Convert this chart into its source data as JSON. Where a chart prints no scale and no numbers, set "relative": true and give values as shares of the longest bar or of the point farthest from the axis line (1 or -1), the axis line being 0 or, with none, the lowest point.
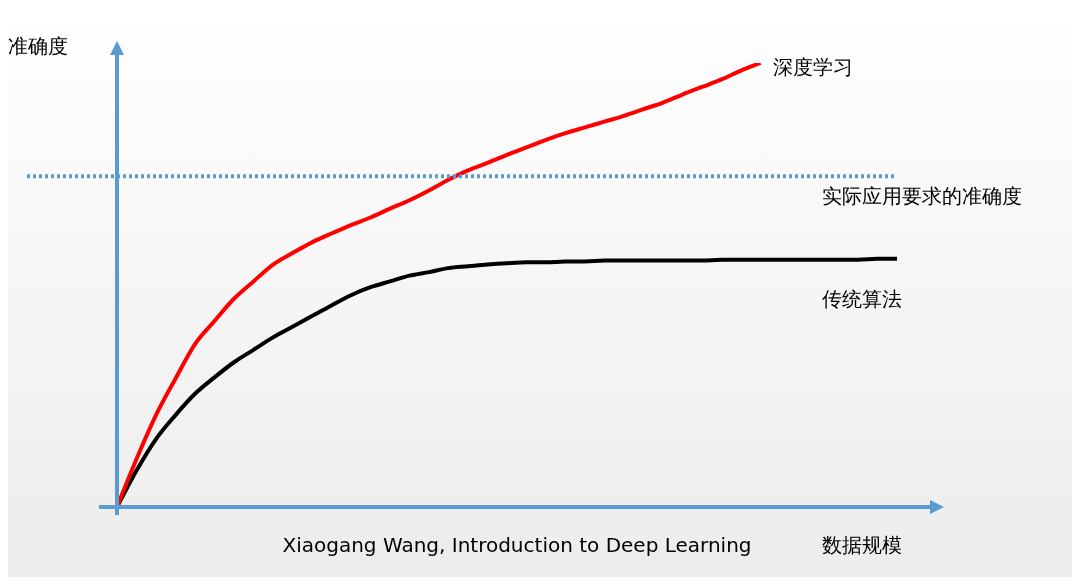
{
  "chart_data": {
    "type": "line",
    "relative": true,
    "ylabel": "准确度",
    "xlabel": "数据规模",
    "annotations": [
      "Xiaogang Wang, Introduction to Deep Learning"
    ],
    "categories": [
      null,
      null,
      null,
      null,
      null,
      null,
      null,
      null,
      null,
      null,
      null,
      null,
      null,
      null,
      null,
      null,
      null,
      null,
      null,
      null,
      null,
      null,
      null,
      null,
      null,
      null,
      null,
      null,
      null,
      null,
      null,
      null,
      null,
      null,
      null,
      null,
      null,
      null,
      null,
      null,
      null
    ],
    "series": [
      {
        "name": "深度学习",
        "color": "#ff0000",
        "values": [
          0,
          0.108,
          0.207,
          0.289,
          0.367,
          0.419,
          0.469,
          0.508,
          0.546,
          0.572,
          0.596,
          0.616,
          0.635,
          0.652,
          0.672,
          0.691,
          0.713,
          0.737,
          0.758,
          0.775,
          0.793,
          0.81,
          0.827,
          0.842,
          0.855,
          0.868,
          0.881,
          0.896,
          0.911,
          0.929,
          0.946,
          0.963,
          0.983,
          1,
          null,
          null,
          null,
          null,
          null,
          null,
          null
        ]
      },
      {
        "name": "传统算法",
        "color": "#000000",
        "values": [
          0,
          0.082,
          0.153,
          0.207,
          0.255,
          0.292,
          0.326,
          0.354,
          0.382,
          0.406,
          0.43,
          0.454,
          0.477,
          0.495,
          0.508,
          0.521,
          0.529,
          0.538,
          0.542,
          0.546,
          0.549,
          0.551,
          0.551,
          0.553,
          0.553,
          0.555,
          0.555,
          0.555,
          0.555,
          0.555,
          0.555,
          0.557,
          0.557,
          0.557,
          0.557,
          0.557,
          0.557,
          0.557,
          0.557,
          0.559,
          0.559
        ]
      }
    ],
    "ref_lines": [
      {
        "axis": "y",
        "value": 0.745,
        "label": "实际应用要求的准确度",
        "color": "#5b9bd5",
        "line_style": "dotted"
      }
    ],
    "legend": false,
    "grid": false,
    "marker": "none",
    "line_style": "solid"
  }
}
